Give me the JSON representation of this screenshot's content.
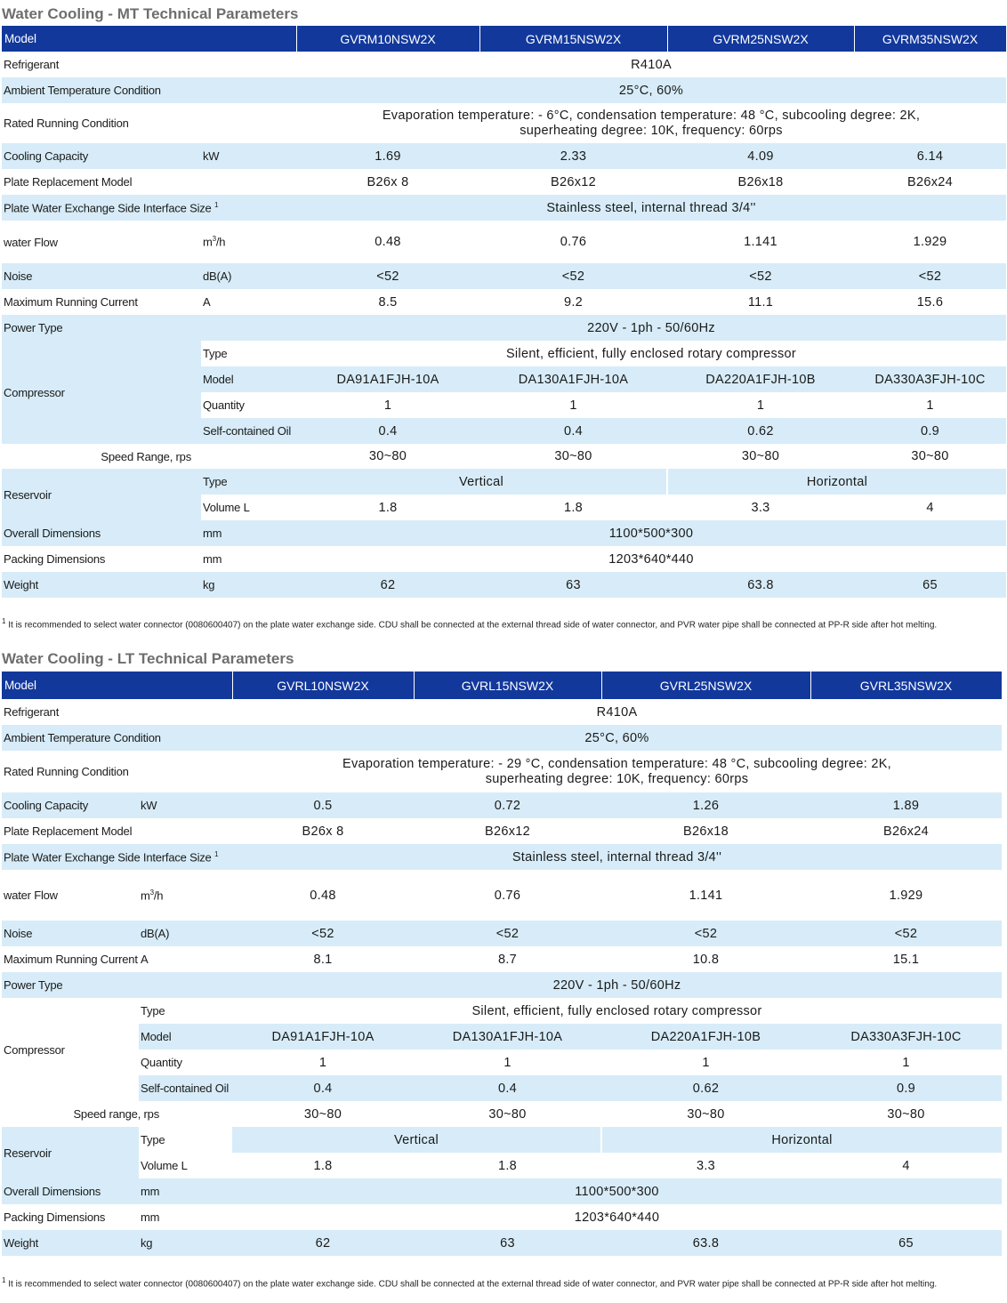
{
  "mt": {
    "title": "Water Cooling - MT Technical Parameters",
    "model_label": "Model",
    "models": [
      "GVRM10NSW2X",
      "GVRM15NSW2X",
      "GVRM25NSW2X",
      "GVRM35NSW2X"
    ],
    "refrigerant": {
      "label": "Refrigerant",
      "value": "R410A"
    },
    "ambient": {
      "label": "Ambient Temperature Condition",
      "value": "25°C,  60%"
    },
    "rated": {
      "label": "Rated Running Condition",
      "line1": "Evaporation temperature: - 6°C, condensation temperature: 48 °C, subcooling degree: 2K,",
      "line2": "superheating degree: 10K, frequency: 60rps"
    },
    "cooling": {
      "label": "Cooling Capacity",
      "unit": "kW",
      "values": [
        "1.69",
        "2.33",
        "4.09",
        "6.14"
      ]
    },
    "plate_model": {
      "label": "Plate Replacement Model",
      "values": [
        "B26x 8",
        "B26x12",
        "B26x18",
        "B26x24"
      ]
    },
    "plate_interface": {
      "label": "Plate Water Exchange Side Interface Size",
      "sup": "1",
      "value": "Stainless steel, internal thread 3/4''"
    },
    "water_flow": {
      "label": "water Flow",
      "unit": "m",
      "unit_sup": "3",
      "unit_tail": "/h",
      "values": [
        "0.48",
        "0.76",
        "1.141",
        "1.929"
      ]
    },
    "noise": {
      "label": "Noise",
      "unit": "dB(A)",
      "values": [
        "<52",
        "<52",
        "<52",
        "<52"
      ]
    },
    "max_current": {
      "label": "Maximum Running Current",
      "unit": "A",
      "values": [
        "8.5",
        "9.2",
        "11.1",
        "15.6"
      ]
    },
    "power": {
      "label": "Power Type",
      "value": "220V - 1ph - 50/60Hz"
    },
    "compressor": {
      "label": "Compressor",
      "type_label": "Type",
      "type_value": "Silent, efficient, fully enclosed rotary compressor",
      "model_label": "Model",
      "models": [
        "DA91A1FJH-10A",
        "DA130A1FJH-10A",
        "DA220A1FJH-10B",
        "DA330A3FJH-10C"
      ],
      "qty_label": "Quantity",
      "qty": [
        "1",
        "1",
        "1",
        "1"
      ],
      "oil_label": "Self-contained Oil",
      "oil": [
        "0.4",
        "0.4",
        "0.62",
        "0.9"
      ]
    },
    "speed": {
      "label": "Speed Range, rps",
      "values": [
        "30~80",
        "30~80",
        "30~80",
        "30~80"
      ]
    },
    "reservoir": {
      "label": "Reservoir",
      "type_label": "Type",
      "type_values": [
        "Vertical",
        "Horizontal"
      ],
      "volume_label": "Volume L",
      "volumes": [
        "1.8",
        "1.8",
        "3.3",
        "4"
      ]
    },
    "overall": {
      "label": "Overall Dimensions",
      "unit": "mm",
      "value": "1100*500*300"
    },
    "packing": {
      "label": "Packing Dimensions",
      "unit": "mm",
      "value": "1203*640*440"
    },
    "weight": {
      "label": "Weight",
      "unit": "kg",
      "values": [
        "62",
        "63",
        "63.8",
        "65"
      ]
    },
    "note_sup": "1",
    "note": "It is recommended to select water connector (0080600407) on the  plate water exchange side. CDU shall be connected at the external thread side of water connector, and PVR water pipe shall be connected at PP-R side after hot melting."
  },
  "lt": {
    "title": "Water Cooling - LT Technical Parameters",
    "model_label": "Model",
    "models": [
      "GVRL10NSW2X",
      "GVRL15NSW2X",
      "GVRL25NSW2X",
      "GVRL35NSW2X"
    ],
    "refrigerant": {
      "label": "Refrigerant",
      "value": "R410A"
    },
    "ambient": {
      "label": "Ambient Temperature Condition",
      "value": "25°C,  60%"
    },
    "rated": {
      "label": "Rated Running Condition",
      "line1": "Evaporation temperature: - 29 °C, condensation temperature: 48 °C, subcooling degree: 2K,",
      "line2": "superheating degree: 10K, frequency: 60rps"
    },
    "cooling": {
      "label": "Cooling Capacity",
      "unit": "kW",
      "values": [
        "0.5",
        "0.72",
        "1.26",
        "1.89"
      ]
    },
    "plate_model": {
      "label": "Plate Replacement Model",
      "values": [
        "B26x 8",
        "B26x12",
        "B26x18",
        "B26x24"
      ]
    },
    "plate_interface": {
      "label": "Plate Water Exchange Side Interface Size",
      "sup": "1",
      "value": "Stainless steel, internal thread 3/4''"
    },
    "water_flow": {
      "label": "water Flow",
      "unit": "m",
      "unit_sup": "3",
      "unit_tail": "/h",
      "values": [
        "0.48",
        "0.76",
        "1.141",
        "1.929"
      ]
    },
    "noise": {
      "label": "Noise",
      "unit": "dB(A)",
      "values": [
        "<52",
        "<52",
        "<52",
        "<52"
      ]
    },
    "max_current": {
      "label": "Maximum Running Current",
      "unit": "A",
      "values": [
        "8.1",
        "8.7",
        "10.8",
        "15.1"
      ]
    },
    "power": {
      "label": "Power Type",
      "value": "220V - 1ph - 50/60Hz"
    },
    "compressor": {
      "label": "Compressor",
      "type_label": "Type",
      "type_value": "Silent, efficient, fully enclosed rotary compressor",
      "model_label": "Model",
      "models": [
        "DA91A1FJH-10A",
        "DA130A1FJH-10A",
        "DA220A1FJH-10B",
        "DA330A3FJH-10C"
      ],
      "qty_label": "Quantity",
      "qty": [
        "1",
        "1",
        "1",
        "1"
      ],
      "oil_label": "Self-contained Oil",
      "oil": [
        "0.4",
        "0.4",
        "0.62",
        "0.9"
      ]
    },
    "speed": {
      "label": "Speed range, rps",
      "values": [
        "30~80",
        "30~80",
        "30~80",
        "30~80"
      ]
    },
    "reservoir": {
      "label": "Reservoir",
      "type_label": "Type",
      "type_values": [
        "Vertical",
        "Horizontal"
      ],
      "volume_label": "Volume L",
      "volumes": [
        "1.8",
        "1.8",
        "3.3",
        "4"
      ]
    },
    "overall": {
      "label": "Overall Dimensions",
      "unit": "mm",
      "value": "1100*500*300"
    },
    "packing": {
      "label": "Packing Dimensions",
      "unit": "mm",
      "value": "1203*640*440"
    },
    "weight": {
      "label": "Weight",
      "unit": "kg",
      "values": [
        "62",
        "63",
        "63.8",
        "65"
      ]
    },
    "note_sup": "1",
    "note": "It is recommended to select water connector (0080600407) on the  plate water exchange side. CDU shall be connected at the external thread side of water connector, and PVR water pipe shall be connected at PP-R side after hot melting."
  }
}
